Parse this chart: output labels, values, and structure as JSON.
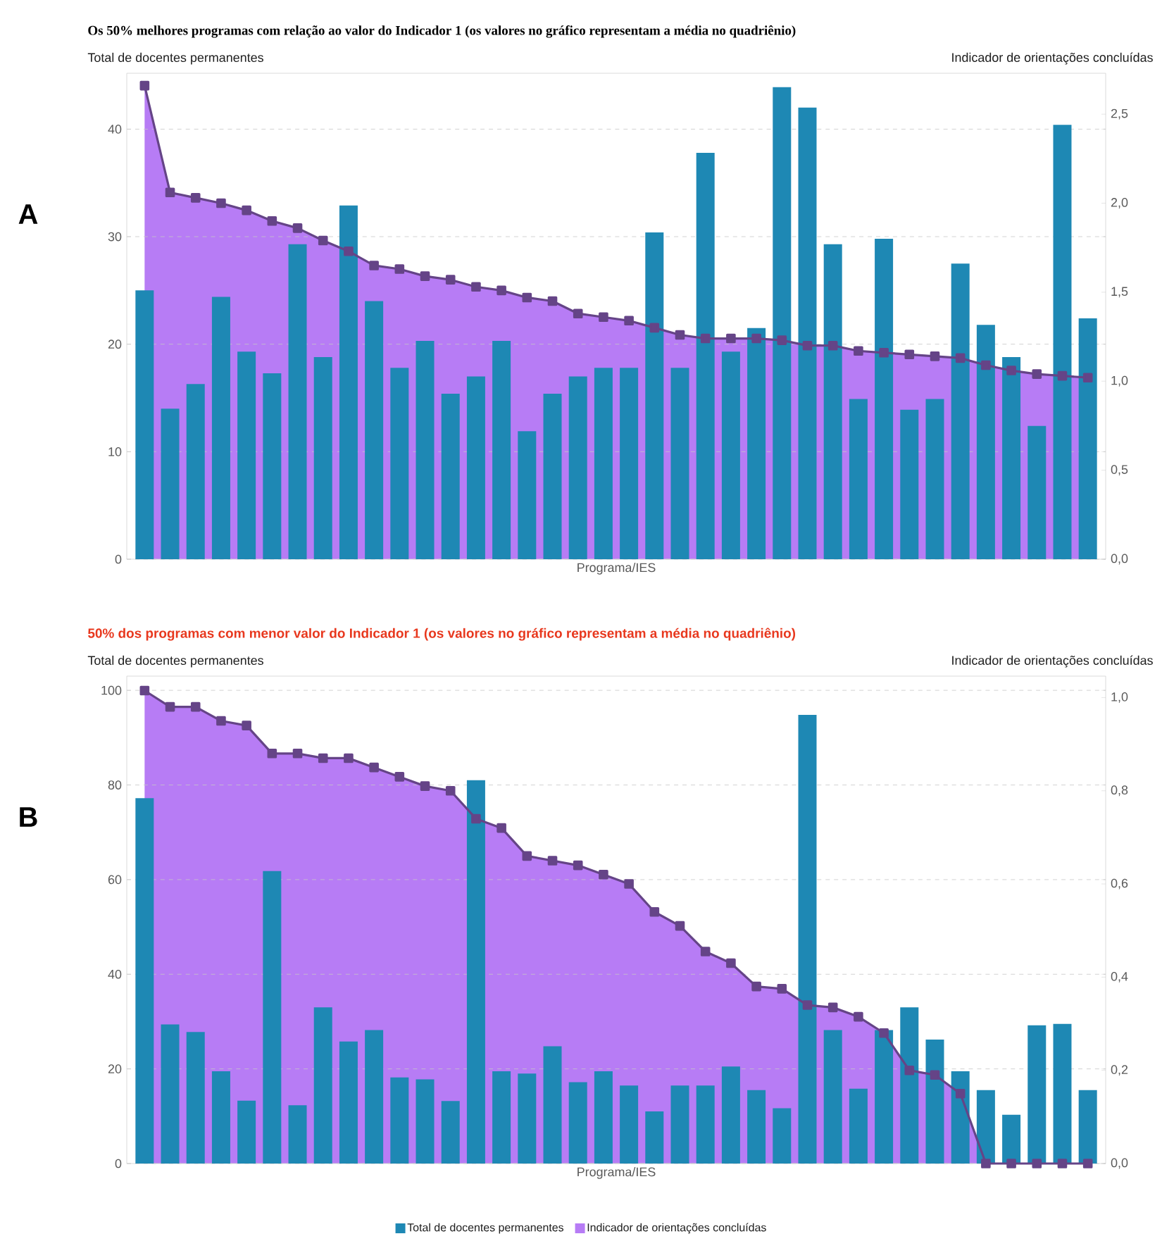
{
  "chart_data": [
    {
      "type": "bar",
      "title": "Os 50% melhores programas com relação ao valor do Indicador 1 (os valores no gráfico representam a média no quadriênio)",
      "xlabel": "Programa/IES",
      "ylabel": "Total de docentes permanentes",
      "y2label": "Indicador de orientações concluídas",
      "annotations": [
        "A"
      ],
      "categories": [
        null,
        null,
        null,
        null,
        null,
        null,
        null,
        null,
        null,
        null,
        null,
        null,
        null,
        null,
        null,
        null,
        null,
        null,
        null,
        null,
        null,
        null,
        null,
        null,
        null,
        null,
        null,
        null,
        null,
        null,
        null,
        null,
        null,
        null,
        null,
        null,
        null,
        null
      ],
      "series": [
        {
          "color": "#1e88b4",
          "values": [
            25,
            14,
            16.3,
            24.4,
            19.3,
            17.3,
            29.3,
            18.8,
            32.9,
            24,
            17.8,
            20.3,
            15.4,
            17,
            20.3,
            11.9,
            15.4,
            17,
            17.8,
            17.8,
            30.4,
            17.8,
            37.8,
            19.3,
            21.5,
            43.9,
            42,
            29.3,
            14.9,
            29.8,
            13.9,
            14.9,
            27.5,
            21.8,
            18.8,
            12.4,
            40.4,
            22.4
          ]
        },
        {
          "type": "area",
          "axis": "y2",
          "color": "#b77cf5",
          "values": [
            2.66,
            2.06,
            2.03,
            2.0,
            1.96,
            1.9,
            1.86,
            1.79,
            1.73,
            1.65,
            1.63,
            1.59,
            1.57,
            1.53,
            1.51,
            1.47,
            1.45,
            1.38,
            1.36,
            1.34,
            1.3,
            1.26,
            1.24,
            1.24,
            1.24,
            1.23,
            1.2,
            1.2,
            1.17,
            1.16,
            1.15,
            1.14,
            1.13,
            1.09,
            1.06,
            1.04,
            1.03,
            1.02
          ]
        }
      ],
      "ylim": [
        0,
        45.2
      ],
      "yticks": [
        0,
        10,
        20,
        30,
        40
      ],
      "y2lim": [
        0,
        2.73
      ],
      "y2ticks": [
        {
          "value": 0,
          "label": "0,0"
        },
        {
          "value": 0.5,
          "label": "0,5"
        },
        {
          "value": 1,
          "label": "1,0"
        },
        {
          "value": 1.5,
          "label": "1,5"
        },
        {
          "value": 2,
          "label": "2,0"
        },
        {
          "value": 2.5,
          "label": "2,5"
        }
      ],
      "grid": "y",
      "marker": "square",
      "tick_labels": "y"
    },
    {
      "type": "bar",
      "title": "50% dos programas com menor valor do Indicador 1 (os valores no gráfico representam a média no quadriênio)",
      "xlabel": "Programa/IES",
      "ylabel": "Total de docentes permanentes",
      "y2label": "Indicador de orientações concluídas",
      "annotations": [
        "B"
      ],
      "categories": [
        null,
        null,
        null,
        null,
        null,
        null,
        null,
        null,
        null,
        null,
        null,
        null,
        null,
        null,
        null,
        null,
        null,
        null,
        null,
        null,
        null,
        null,
        null,
        null,
        null,
        null,
        null,
        null,
        null,
        null,
        null,
        null,
        null,
        null,
        null,
        null,
        null,
        null
      ],
      "series": [
        {
          "name": "Total de docentes permanentes",
          "color": "#1e88b4",
          "values": [
            77.2,
            29.4,
            27.8,
            19.5,
            13.3,
            61.8,
            12.3,
            33,
            25.8,
            28.2,
            18.2,
            17.8,
            13.2,
            81,
            19.5,
            19,
            24.8,
            17.2,
            19.5,
            16.5,
            11,
            16.5,
            16.5,
            20.5,
            15.5,
            11.7,
            94.8,
            28.2,
            15.8,
            28.2,
            33,
            26.2,
            19.5,
            15.5,
            10.3,
            29.2,
            29.5,
            15.5
          ]
        },
        {
          "type": "area",
          "axis": "y2",
          "name": "Indicador de orientações concluídas",
          "color": "#b77cf5",
          "values": [
            1.015,
            0.98,
            0.98,
            0.95,
            0.94,
            0.88,
            0.88,
            0.87,
            0.87,
            0.85,
            0.83,
            0.81,
            0.8,
            0.74,
            0.72,
            0.66,
            0.65,
            0.64,
            0.62,
            0.6,
            0.54,
            0.51,
            0.455,
            0.43,
            0.38,
            0.375,
            0.34,
            0.335,
            0.315,
            0.28,
            0.2,
            0.19,
            0.15,
            0,
            0,
            0,
            0,
            0
          ]
        }
      ],
      "ylim": [
        0,
        103
      ],
      "yticks": [
        0,
        20,
        40,
        60,
        80,
        100
      ],
      "y2lim": [
        0,
        1.046
      ],
      "y2ticks": [
        {
          "value": 0,
          "label": "0,0"
        },
        {
          "value": 0.2,
          "label": "0,2"
        },
        {
          "value": 0.4,
          "label": "0,4"
        },
        {
          "value": 0.6,
          "label": "0,6"
        },
        {
          "value": 0.8,
          "label": "0,8"
        },
        {
          "value": 1,
          "label": "1,0"
        }
      ],
      "grid": "y",
      "marker": "square",
      "legend": "bottom",
      "tick_labels": "y"
    }
  ]
}
